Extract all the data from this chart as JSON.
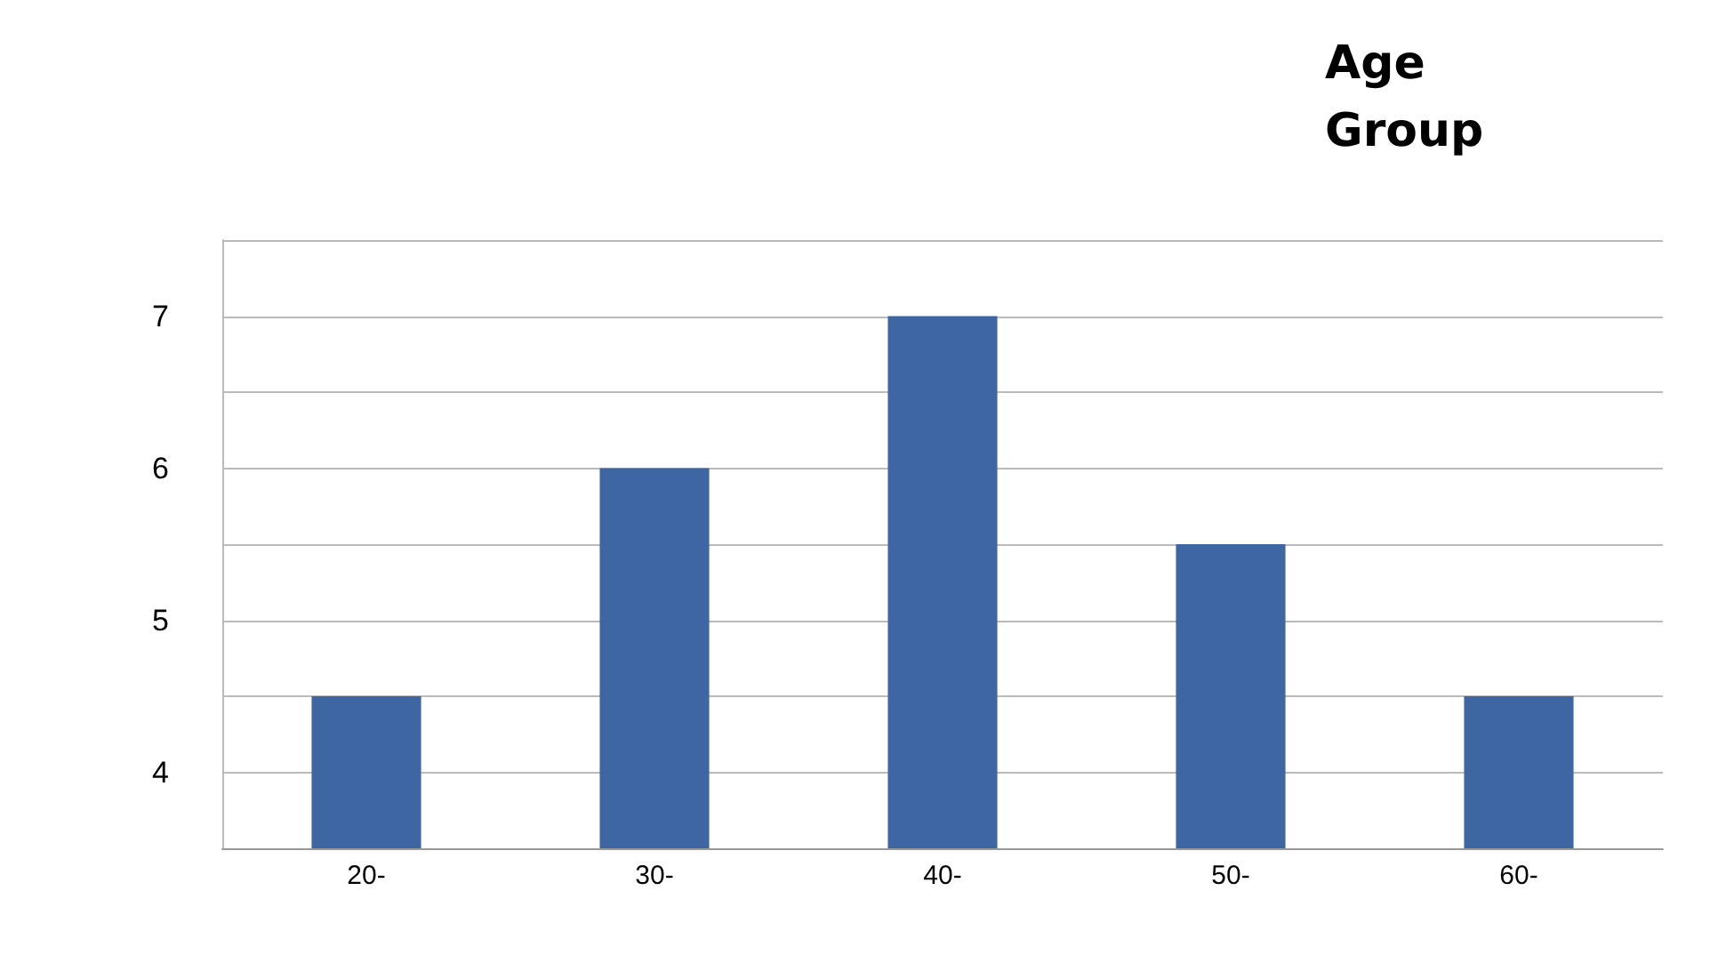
{
  "chart_data": {
    "type": "bar",
    "title": "Age Group",
    "categories": [
      "20-",
      "30-",
      "40-",
      "50-",
      "60-"
    ],
    "values": [
      4.5,
      6,
      7,
      5.5,
      4.5
    ],
    "color": "#3d66a3",
    "ylim": [
      3.5,
      7.5
    ],
    "yticks": [
      {
        "value": 3.5,
        "label": null
      },
      4,
      {
        "value": 4.5,
        "label": null
      },
      5,
      {
        "value": 5.5,
        "label": null
      },
      6,
      {
        "value": 6.5,
        "label": null
      },
      7,
      {
        "value": 7.5,
        "label": null
      }
    ],
    "grid": "y"
  }
}
